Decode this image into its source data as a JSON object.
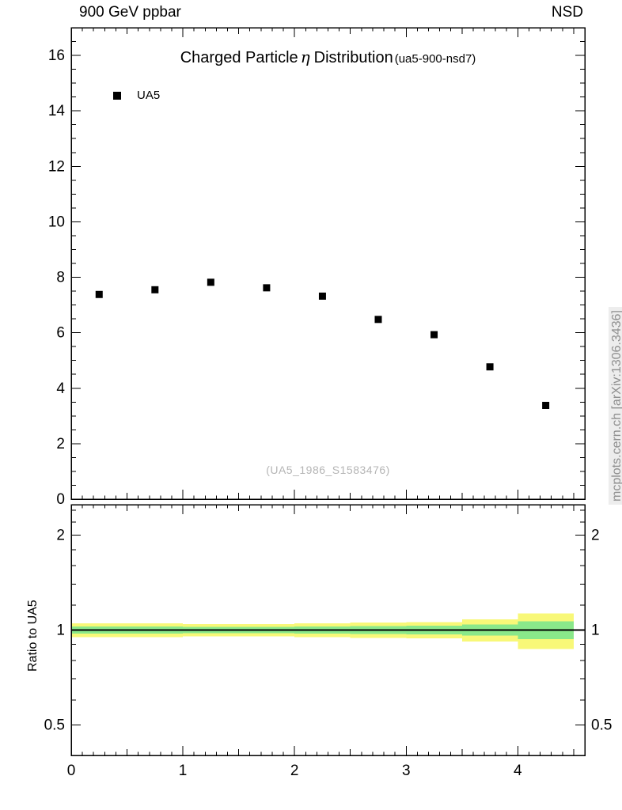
{
  "header": {
    "left": "900 GeV ppbar",
    "right": "NSD"
  },
  "side_caption": "mcplots.cern.ch [arXiv:1306.3436]",
  "chart_data": [
    {
      "type": "scatter",
      "title": "Charged Particle η Distribution (ua5-900-nsd7)",
      "title_parts": {
        "prefix": "Charged Particle",
        "symbol": "η",
        "suffix": "Distribution",
        "tag": "(ua5-900-nsd7)"
      },
      "watermark": "(UA5_1986_S1583476)",
      "xlim": [
        0,
        4.6
      ],
      "ylim": [
        0,
        17
      ],
      "xticks": [
        0,
        1,
        2,
        3,
        4
      ],
      "yticks": [
        0,
        2,
        4,
        6,
        8,
        10,
        12,
        14,
        16
      ],
      "grid": false,
      "legend_position": "top-left",
      "series": [
        {
          "name": "UA5",
          "marker": "filled-square",
          "color": "#000000",
          "x": [
            0.25,
            0.75,
            1.25,
            1.75,
            2.25,
            2.75,
            3.25,
            3.75,
            4.25
          ],
          "y": [
            7.38,
            7.55,
            7.82,
            7.62,
            7.32,
            6.48,
            5.93,
            4.77,
            3.38
          ]
        }
      ]
    },
    {
      "type": "ratio-band",
      "ylabel": "Ratio to UA5",
      "yscale": "log",
      "xlim": [
        0,
        4.6
      ],
      "ylim": [
        0.4,
        2.5
      ],
      "xticks": [
        0,
        1,
        2,
        3,
        4
      ],
      "yticks": [
        0.5,
        1,
        2
      ],
      "minor_ticks": [
        0.4,
        0.6,
        0.7,
        0.8,
        0.9,
        1.2,
        1.4,
        1.6,
        1.8,
        2.2,
        2.4
      ],
      "reference_line": 1,
      "band_colors": {
        "outer": "#f8f878",
        "inner": "#8ae88a"
      },
      "bin_edges": [
        0,
        0.5,
        1,
        1.5,
        2,
        2.5,
        3,
        3.5,
        4,
        4.5
      ],
      "outer_band": [
        [
          0.95,
          1.05
        ],
        [
          0.95,
          1.05
        ],
        [
          0.955,
          1.045
        ],
        [
          0.955,
          1.045
        ],
        [
          0.95,
          1.05
        ],
        [
          0.945,
          1.055
        ],
        [
          0.94,
          1.06
        ],
        [
          0.92,
          1.08
        ],
        [
          0.87,
          1.13
        ]
      ],
      "inner_band": [
        [
          0.975,
          1.025
        ],
        [
          0.975,
          1.025
        ],
        [
          0.978,
          1.022
        ],
        [
          0.978,
          1.022
        ],
        [
          0.975,
          1.025
        ],
        [
          0.972,
          1.028
        ],
        [
          0.968,
          1.032
        ],
        [
          0.96,
          1.04
        ],
        [
          0.935,
          1.065
        ]
      ]
    }
  ]
}
